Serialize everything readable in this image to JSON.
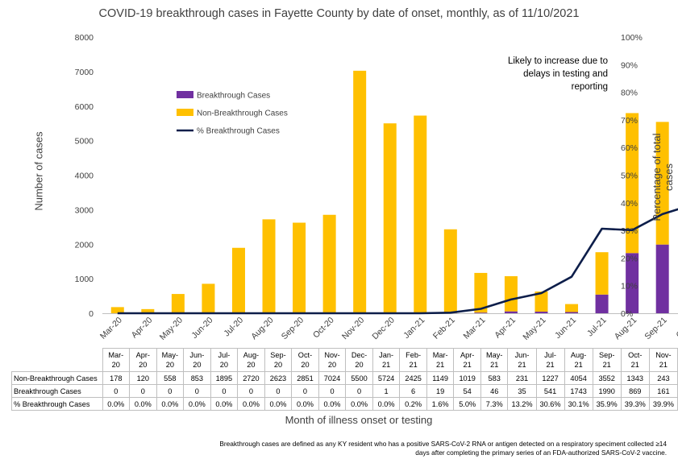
{
  "title": "COVID-19 breakthrough cases in Fayette County by date of onset, monthly, as of 11/10/2021",
  "colors": {
    "breakthrough": "#7030a0",
    "non_breakthrough": "#ffc000",
    "percent_line": "#0d1e4a",
    "shade": "#d9d9d9"
  },
  "annotation": "Likely to increase due to delays in testing and reporting",
  "footnote": "Breakthrough cases are defined as any KY resident who has a positive SARS-CoV-2 RNA or antigen detected on a respiratory speciment collected ≥14 days after completing the primary series of an FDA-authorized SARS-CoV-2 vaccine.",
  "chart_data": {
    "type": "bar",
    "stacked": true,
    "categories": [
      "Mar-20",
      "Apr-20",
      "May-20",
      "Jun-20",
      "Jul-20",
      "Aug-20",
      "Sep-20",
      "Oct-20",
      "Nov-20",
      "Dec-20",
      "Jan-21",
      "Feb-21",
      "Mar-21",
      "Apr-21",
      "May-21",
      "Jun-21",
      "Jul-21",
      "Aug-21",
      "Sep-21",
      "Oct-21",
      "Nov-21"
    ],
    "table_headers": [
      [
        "Mar-",
        "20"
      ],
      [
        "Apr-",
        "20"
      ],
      [
        "May-",
        "20"
      ],
      [
        "Jun-",
        "20"
      ],
      [
        "Jul-",
        "20"
      ],
      [
        "Aug-",
        "20"
      ],
      [
        "Sep-",
        "20"
      ],
      [
        "Oct-",
        "20"
      ],
      [
        "Nov-",
        "20"
      ],
      [
        "Dec-",
        "20"
      ],
      [
        "Jan-",
        "21"
      ],
      [
        "Feb-",
        "21"
      ],
      [
        "Mar-",
        "21"
      ],
      [
        "Apr-",
        "21"
      ],
      [
        "May-",
        "21"
      ],
      [
        "Jun-",
        "21"
      ],
      [
        "Jul-",
        "21"
      ],
      [
        "Aug-",
        "21"
      ],
      [
        "Sep-",
        "21"
      ],
      [
        "Oct-",
        "21"
      ],
      [
        "Nov-",
        "21"
      ]
    ],
    "series": [
      {
        "name": "Breakthrough Cases",
        "axis": "left",
        "values": [
          0,
          0,
          0,
          0,
          0,
          0,
          0,
          0,
          0,
          0,
          1,
          6,
          19,
          54,
          46,
          35,
          541,
          1743,
          1990,
          869,
          161
        ]
      },
      {
        "name": "Non-Breakthrough Cases",
        "axis": "left",
        "values": [
          178,
          120,
          558,
          853,
          1895,
          2720,
          2623,
          2851,
          7024,
          5500,
          5724,
          2425,
          1149,
          1019,
          583,
          231,
          1227,
          4054,
          3552,
          1343,
          243
        ]
      },
      {
        "name": "% Breakthrough Cases",
        "type": "line",
        "axis": "right",
        "values": [
          0.0,
          0.0,
          0.0,
          0.0,
          0.0,
          0.0,
          0.0,
          0.0,
          0.0,
          0.0,
          0.0,
          0.2,
          1.6,
          5.0,
          7.3,
          13.2,
          30.6,
          30.1,
          35.9,
          39.3,
          39.9
        ]
      }
    ],
    "percent_labels": [
      "0.0%",
      "0.0%",
      "0.0%",
      "0.0%",
      "0.0%",
      "0.0%",
      "0.0%",
      "0.0%",
      "0.0%",
      "0.0%",
      "0.0%",
      "0.2%",
      "1.6%",
      "5.0%",
      "7.3%",
      "13.2%",
      "30.6%",
      "30.1%",
      "35.9%",
      "39.3%",
      "39.9%"
    ],
    "shaded_category": "Nov-21",
    "ylabel": "Number of cases",
    "ylabel_right": "Percentage of total cases",
    "xlabel": "Month of illness onset or testing",
    "ylim": [
      0,
      8000
    ],
    "ylim_right": [
      0,
      100
    ],
    "yticks": [
      "0",
      "1000",
      "2000",
      "3000",
      "4000",
      "5000",
      "6000",
      "7000",
      "8000"
    ],
    "yticks_right": [
      "0%",
      "10%",
      "20%",
      "30%",
      "40%",
      "50%",
      "60%",
      "70%",
      "80%",
      "90%",
      "100%"
    ],
    "legend_placement": "upper-left inside plot"
  }
}
